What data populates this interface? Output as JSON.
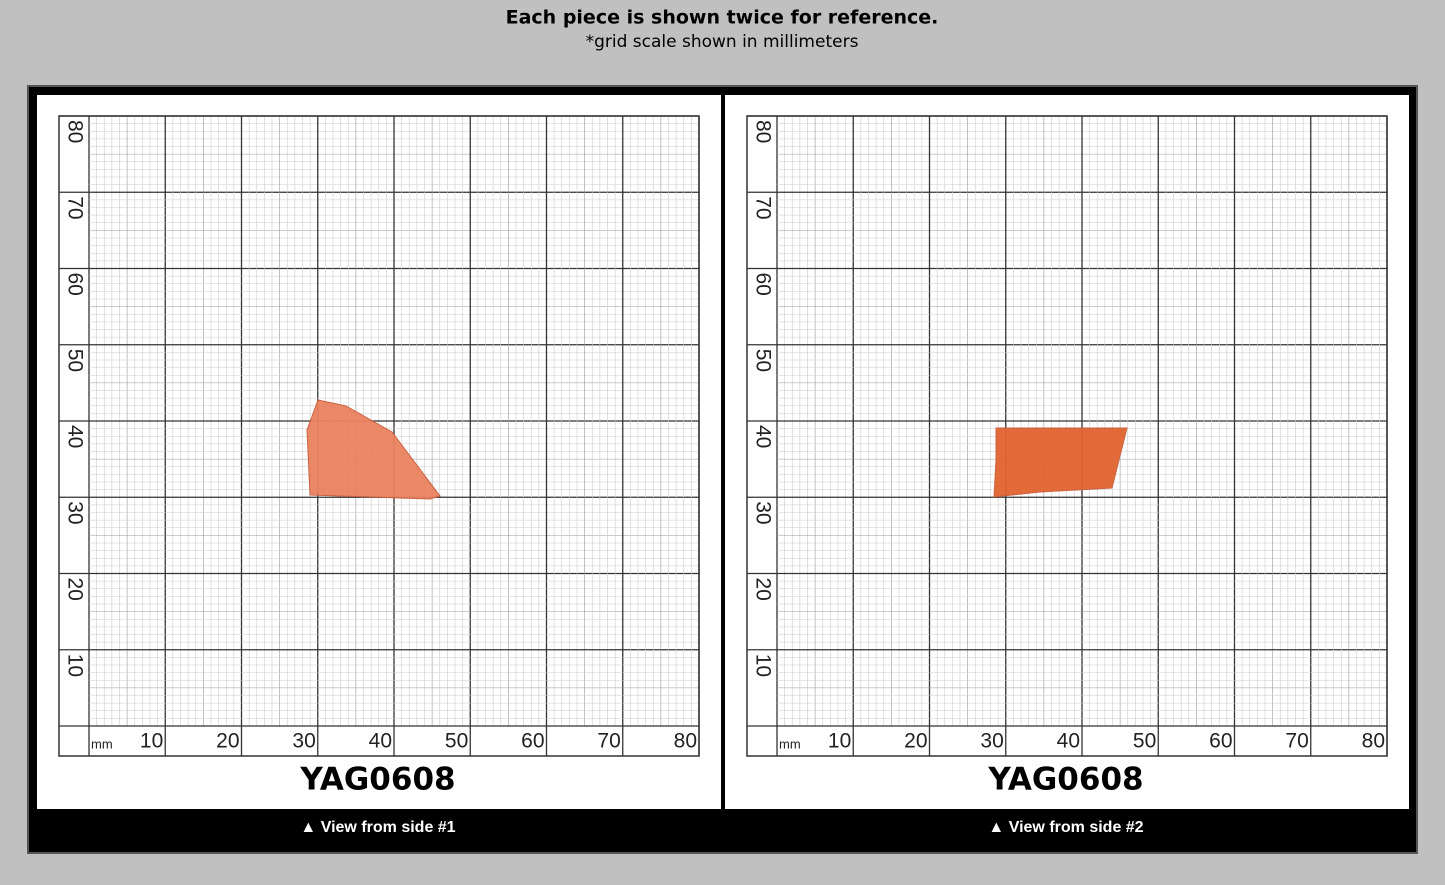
{
  "header": {
    "title": "Each piece is shown twice for reference.",
    "subtitle": "*grid scale shown in millimeters"
  },
  "panels": [
    {
      "y_labels": [
        "80",
        "70",
        "60",
        "50",
        "40",
        "30",
        "20",
        "10"
      ],
      "x_labels": [
        "10",
        "20",
        "30",
        "40",
        "50",
        "60",
        "70",
        "80"
      ],
      "unit": "mm",
      "label": "YAG0608",
      "caption": "▲ View from side #1"
    },
    {
      "y_labels": [
        "80",
        "70",
        "60",
        "50",
        "40",
        "30",
        "20",
        "10"
      ],
      "x_labels": [
        "10",
        "20",
        "30",
        "40",
        "50",
        "60",
        "70",
        "80"
      ],
      "unit": "mm",
      "label": "YAG0608",
      "caption": "▲ View from side #2"
    }
  ]
}
